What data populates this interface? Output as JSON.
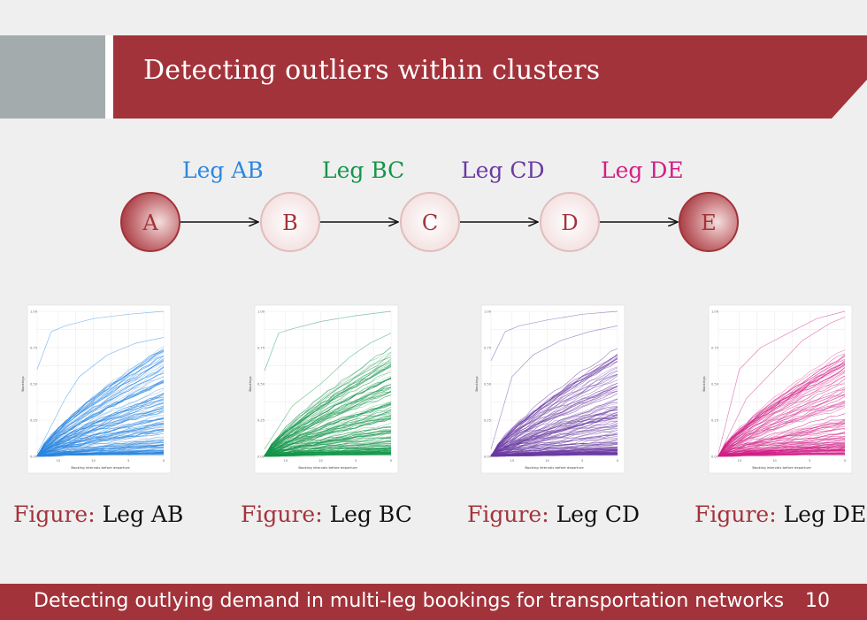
{
  "slide": {
    "title": "Detecting outliers within clusters",
    "footer_text": "Detecting outlying demand in multi-leg bookings for transportation networks",
    "page_number": "10",
    "accent_color": "#a3333b",
    "side_block_color": "#a3abad"
  },
  "diagram": {
    "nodes": [
      {
        "label": "A",
        "style": "filled"
      },
      {
        "label": "B",
        "style": "light"
      },
      {
        "label": "C",
        "style": "light"
      },
      {
        "label": "D",
        "style": "light"
      },
      {
        "label": "E",
        "style": "filled"
      }
    ],
    "legs": [
      {
        "label": "Leg AB",
        "color": "#2c87e0"
      },
      {
        "label": "Leg BC",
        "color": "#14964a"
      },
      {
        "label": "Leg CD",
        "color": "#6b3aa3"
      },
      {
        "label": "Leg DE",
        "color": "#d21f86"
      }
    ]
  },
  "captions": [
    {
      "prefix": "Figure:",
      "name": "Leg AB"
    },
    {
      "prefix": "Figure:",
      "name": "Leg BC"
    },
    {
      "prefix": "Figure:",
      "name": "Leg CD"
    },
    {
      "prefix": "Figure:",
      "name": "Leg DE"
    }
  ],
  "chart_data": [
    {
      "type": "line",
      "leg": "Leg AB",
      "color": "#2c87e0",
      "xlabel": "Booking intervals before departure",
      "ylabel": "Bookings",
      "x_ticks": [
        "15",
        "10",
        "5",
        "0"
      ],
      "y_ticks": [
        "0.00",
        "0.25",
        "0.50",
        "0.75",
        "1.00"
      ],
      "xlim": [
        18,
        0
      ],
      "ylim": [
        0,
        1
      ],
      "grid": true,
      "series_count": 150,
      "seed": 11,
      "outliers": [
        {
          "x": [
            18,
            16,
            14,
            10,
            5,
            0
          ],
          "y": [
            0.6,
            0.86,
            0.9,
            0.95,
            0.98,
            1.0
          ]
        },
        {
          "x": [
            18,
            14,
            12,
            8,
            4,
            0
          ],
          "y": [
            0.02,
            0.4,
            0.55,
            0.7,
            0.78,
            0.82
          ]
        }
      ]
    },
    {
      "type": "line",
      "leg": "Leg BC",
      "color": "#14964a",
      "xlabel": "Booking intervals before departure",
      "ylabel": "Bookings",
      "x_ticks": [
        "15",
        "10",
        "5",
        "0"
      ],
      "y_ticks": [
        "0.00",
        "0.25",
        "0.50",
        "0.75",
        "1.00"
      ],
      "xlim": [
        18,
        0
      ],
      "ylim": [
        0,
        1
      ],
      "grid": true,
      "series_count": 150,
      "seed": 23,
      "outliers": [
        {
          "x": [
            18,
            16,
            14,
            10,
            5,
            0
          ],
          "y": [
            0.59,
            0.85,
            0.88,
            0.93,
            0.97,
            1.0
          ]
        },
        {
          "x": [
            18,
            14,
            10,
            6,
            3,
            0
          ],
          "y": [
            0.05,
            0.35,
            0.5,
            0.68,
            0.78,
            0.85
          ]
        }
      ]
    },
    {
      "type": "line",
      "leg": "Leg CD",
      "color": "#6b3aa3",
      "xlabel": "Booking intervals before departure",
      "ylabel": "Bookings",
      "x_ticks": [
        "15",
        "10",
        "5",
        "0"
      ],
      "y_ticks": [
        "0.00",
        "0.25",
        "0.50",
        "0.75",
        "1.00"
      ],
      "xlim": [
        18,
        0
      ],
      "ylim": [
        0,
        1
      ],
      "grid": true,
      "series_count": 150,
      "seed": 37,
      "outliers": [
        {
          "x": [
            18,
            16,
            14,
            10,
            5,
            0
          ],
          "y": [
            0.66,
            0.86,
            0.9,
            0.94,
            0.98,
            1.0
          ]
        },
        {
          "x": [
            18,
            15,
            12,
            8,
            4,
            0
          ],
          "y": [
            0.05,
            0.55,
            0.7,
            0.8,
            0.86,
            0.9
          ]
        }
      ]
    },
    {
      "type": "line",
      "leg": "Leg DE",
      "color": "#d21f86",
      "xlabel": "Booking intervals before departure",
      "ylabel": "Bookings",
      "x_ticks": [
        "15",
        "10",
        "5",
        "0"
      ],
      "y_ticks": [
        "0.00",
        "0.25",
        "0.50",
        "0.75",
        "1.00"
      ],
      "xlim": [
        18,
        0
      ],
      "ylim": [
        0,
        1
      ],
      "grid": true,
      "series_count": 130,
      "seed": 53,
      "outliers": [
        {
          "x": [
            18,
            15,
            12,
            8,
            4,
            0
          ],
          "y": [
            0.02,
            0.6,
            0.75,
            0.85,
            0.95,
            1.0
          ]
        },
        {
          "x": [
            18,
            14,
            10,
            6,
            2,
            0
          ],
          "y": [
            0.0,
            0.4,
            0.6,
            0.8,
            0.92,
            0.96
          ]
        }
      ]
    }
  ]
}
